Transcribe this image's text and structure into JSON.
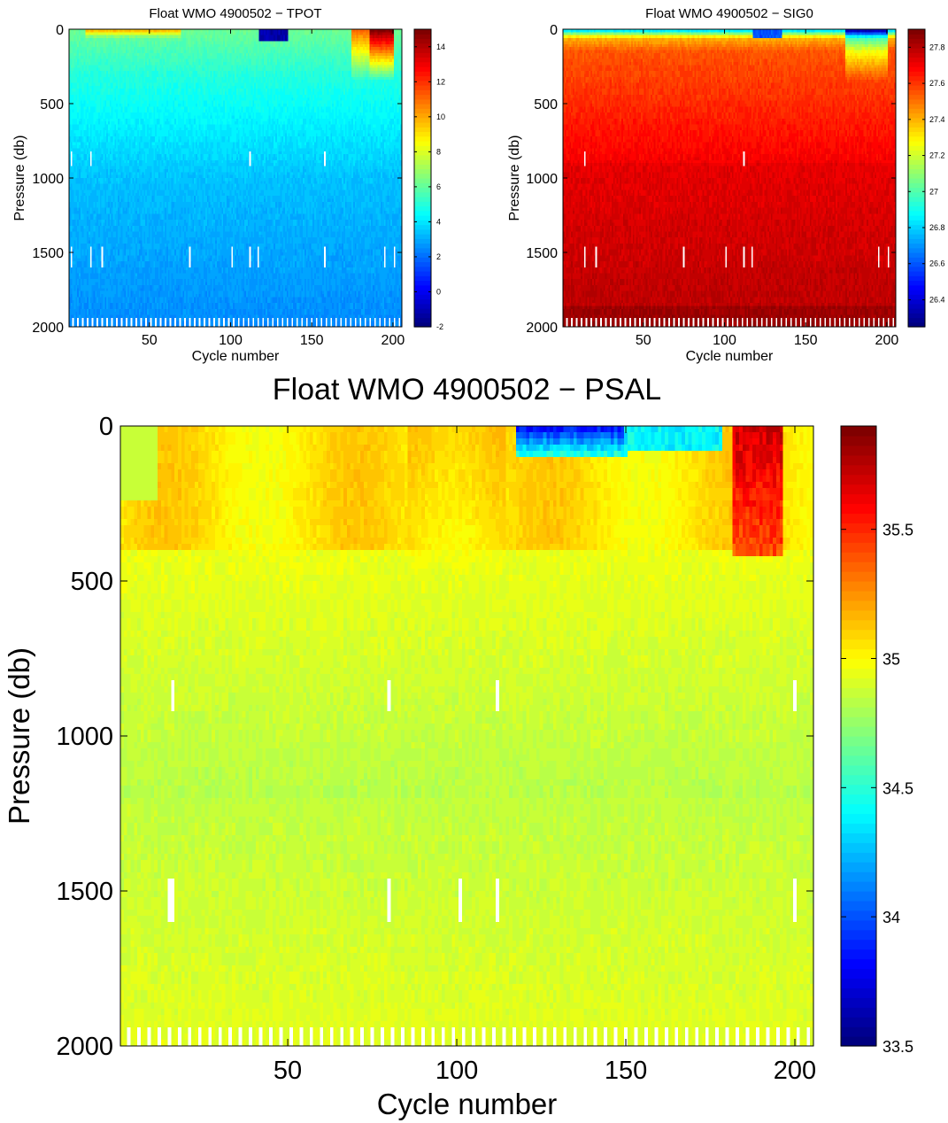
{
  "chart_data": [
    {
      "type": "heatmap",
      "id": "tpot",
      "title": "Float WMO 4900502 − TPOT",
      "xlabel": "Cycle number",
      "ylabel": "Pressure (db)",
      "xlim": [
        1,
        205
      ],
      "ylim": [
        0,
        2000
      ],
      "y_reversed": true,
      "xticks": [
        50,
        100,
        150,
        200
      ],
      "yticks": [
        0,
        500,
        1000,
        1500,
        2000
      ],
      "colormap": "jet",
      "clim": [
        -2,
        15
      ],
      "colorbar_ticks": [
        -2,
        0,
        2,
        4,
        6,
        8,
        10,
        12,
        14
      ],
      "gap_cycles": [
        2,
        14,
        21,
        75,
        101,
        112,
        117,
        158,
        195,
        201
      ],
      "grid": false,
      "legend": "none"
    },
    {
      "type": "heatmap",
      "id": "sig0",
      "title": "Float WMO 4900502 − SIG0",
      "xlabel": "Cycle number",
      "ylabel": "Pressure (db)",
      "xlim": [
        1,
        205
      ],
      "ylim": [
        0,
        2000
      ],
      "y_reversed": true,
      "xticks": [
        50,
        100,
        150,
        200
      ],
      "yticks": [
        0,
        500,
        1000,
        1500,
        2000
      ],
      "colormap": "jet",
      "clim": [
        26.25,
        27.9
      ],
      "colorbar_ticks": [
        26.4,
        26.6,
        26.8,
        27,
        27.2,
        27.4,
        27.6,
        27.8
      ],
      "gap_cycles": [
        14,
        21,
        75,
        101,
        112,
        117,
        195,
        201
      ],
      "grid": false,
      "legend": "none"
    },
    {
      "type": "heatmap",
      "id": "psal",
      "title": "Float WMO 4900502 − PSAL",
      "xlabel": "Cycle number",
      "ylabel": "Pressure (db)",
      "xlim": [
        1,
        205
      ],
      "ylim": [
        0,
        2000
      ],
      "y_reversed": true,
      "xticks": [
        50,
        100,
        150,
        200
      ],
      "yticks": [
        0,
        500,
        1000,
        1500,
        2000
      ],
      "colormap": "jet",
      "clim": [
        33.5,
        35.9
      ],
      "colorbar_ticks": [
        33.5,
        34,
        34.5,
        35,
        35.5
      ],
      "gap_cycles": [
        15,
        16,
        80,
        101,
        112,
        200
      ],
      "grid": false,
      "legend": "none"
    }
  ]
}
